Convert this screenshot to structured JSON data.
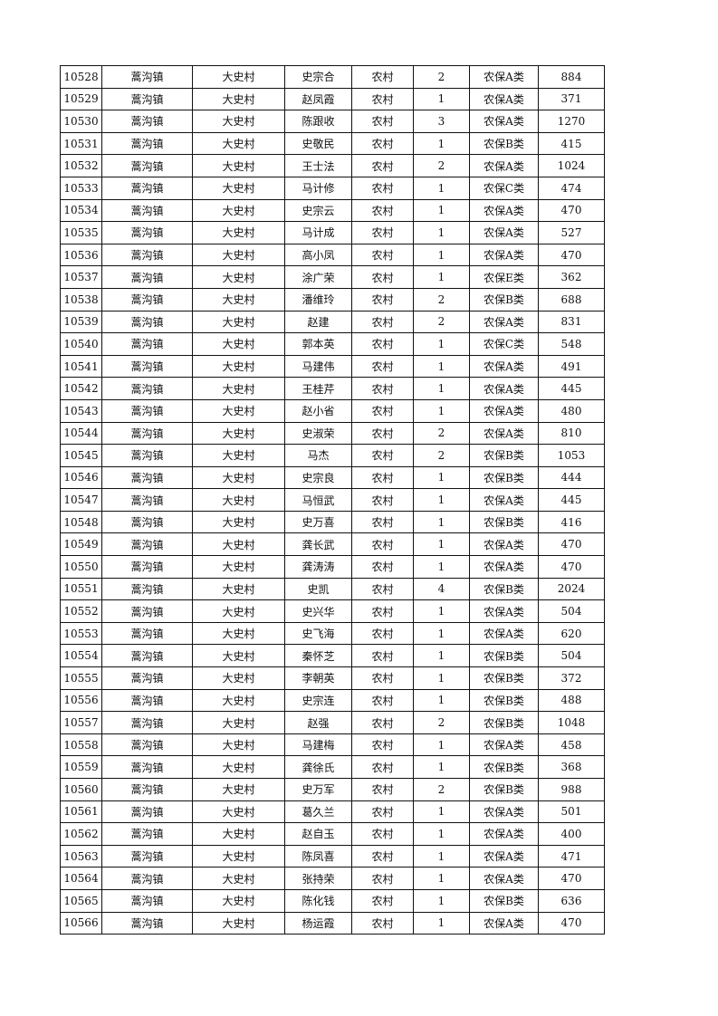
{
  "table": {
    "rows": [
      [
        "10528",
        "蒿沟镇",
        "大史村",
        "史宗合",
        "农村",
        "2",
        "农保A类",
        "884"
      ],
      [
        "10529",
        "蒿沟镇",
        "大史村",
        "赵凤霞",
        "农村",
        "1",
        "农保A类",
        "371"
      ],
      [
        "10530",
        "蒿沟镇",
        "大史村",
        "陈跟收",
        "农村",
        "3",
        "农保A类",
        "1270"
      ],
      [
        "10531",
        "蒿沟镇",
        "大史村",
        "史敬民",
        "农村",
        "1",
        "农保B类",
        "415"
      ],
      [
        "10532",
        "蒿沟镇",
        "大史村",
        "王士法",
        "农村",
        "2",
        "农保A类",
        "1024"
      ],
      [
        "10533",
        "蒿沟镇",
        "大史村",
        "马计修",
        "农村",
        "1",
        "农保C类",
        "474"
      ],
      [
        "10534",
        "蒿沟镇",
        "大史村",
        "史宗云",
        "农村",
        "1",
        "农保A类",
        "470"
      ],
      [
        "10535",
        "蒿沟镇",
        "大史村",
        "马计成",
        "农村",
        "1",
        "农保A类",
        "527"
      ],
      [
        "10536",
        "蒿沟镇",
        "大史村",
        "高小凤",
        "农村",
        "1",
        "农保A类",
        "470"
      ],
      [
        "10537",
        "蒿沟镇",
        "大史村",
        "涂广荣",
        "农村",
        "1",
        "农保E类",
        "362"
      ],
      [
        "10538",
        "蒿沟镇",
        "大史村",
        "潘维玲",
        "农村",
        "2",
        "农保B类",
        "688"
      ],
      [
        "10539",
        "蒿沟镇",
        "大史村",
        "赵建",
        "农村",
        "2",
        "农保A类",
        "831"
      ],
      [
        "10540",
        "蒿沟镇",
        "大史村",
        "郭本英",
        "农村",
        "1",
        "农保C类",
        "548"
      ],
      [
        "10541",
        "蒿沟镇",
        "大史村",
        "马建伟",
        "农村",
        "1",
        "农保A类",
        "491"
      ],
      [
        "10542",
        "蒿沟镇",
        "大史村",
        "王桂芹",
        "农村",
        "1",
        "农保A类",
        "445"
      ],
      [
        "10543",
        "蒿沟镇",
        "大史村",
        "赵小省",
        "农村",
        "1",
        "农保A类",
        "480"
      ],
      [
        "10544",
        "蒿沟镇",
        "大史村",
        "史淑荣",
        "农村",
        "2",
        "农保A类",
        "810"
      ],
      [
        "10545",
        "蒿沟镇",
        "大史村",
        "马杰",
        "农村",
        "2",
        "农保B类",
        "1053"
      ],
      [
        "10546",
        "蒿沟镇",
        "大史村",
        "史宗良",
        "农村",
        "1",
        "农保B类",
        "444"
      ],
      [
        "10547",
        "蒿沟镇",
        "大史村",
        "马恒武",
        "农村",
        "1",
        "农保A类",
        "445"
      ],
      [
        "10548",
        "蒿沟镇",
        "大史村",
        "史万喜",
        "农村",
        "1",
        "农保B类",
        "416"
      ],
      [
        "10549",
        "蒿沟镇",
        "大史村",
        "龚长武",
        "农村",
        "1",
        "农保A类",
        "470"
      ],
      [
        "10550",
        "蒿沟镇",
        "大史村",
        "龚涛涛",
        "农村",
        "1",
        "农保A类",
        "470"
      ],
      [
        "10551",
        "蒿沟镇",
        "大史村",
        "史凯",
        "农村",
        "4",
        "农保B类",
        "2024"
      ],
      [
        "10552",
        "蒿沟镇",
        "大史村",
        "史兴华",
        "农村",
        "1",
        "农保A类",
        "504"
      ],
      [
        "10553",
        "蒿沟镇",
        "大史村",
        "史飞海",
        "农村",
        "1",
        "农保A类",
        "620"
      ],
      [
        "10554",
        "蒿沟镇",
        "大史村",
        "秦怀芝",
        "农村",
        "1",
        "农保B类",
        "504"
      ],
      [
        "10555",
        "蒿沟镇",
        "大史村",
        "李朝英",
        "农村",
        "1",
        "农保B类",
        "372"
      ],
      [
        "10556",
        "蒿沟镇",
        "大史村",
        "史宗连",
        "农村",
        "1",
        "农保B类",
        "488"
      ],
      [
        "10557",
        "蒿沟镇",
        "大史村",
        "赵强",
        "农村",
        "2",
        "农保B类",
        "1048"
      ],
      [
        "10558",
        "蒿沟镇",
        "大史村",
        "马建梅",
        "农村",
        "1",
        "农保A类",
        "458"
      ],
      [
        "10559",
        "蒿沟镇",
        "大史村",
        "龚徐氏",
        "农村",
        "1",
        "农保B类",
        "368"
      ],
      [
        "10560",
        "蒿沟镇",
        "大史村",
        "史万军",
        "农村",
        "2",
        "农保B类",
        "988"
      ],
      [
        "10561",
        "蒿沟镇",
        "大史村",
        "葛久兰",
        "农村",
        "1",
        "农保A类",
        "501"
      ],
      [
        "10562",
        "蒿沟镇",
        "大史村",
        "赵自玉",
        "农村",
        "1",
        "农保A类",
        "400"
      ],
      [
        "10563",
        "蒿沟镇",
        "大史村",
        "陈凤喜",
        "农村",
        "1",
        "农保A类",
        "471"
      ],
      [
        "10564",
        "蒿沟镇",
        "大史村",
        "张持荣",
        "农村",
        "1",
        "农保A类",
        "470"
      ],
      [
        "10565",
        "蒿沟镇",
        "大史村",
        "陈化钱",
        "农村",
        "1",
        "农保B类",
        "636"
      ],
      [
        "10566",
        "蒿沟镇",
        "大史村",
        "杨运霞",
        "农村",
        "1",
        "农保A类",
        "470"
      ]
    ]
  }
}
